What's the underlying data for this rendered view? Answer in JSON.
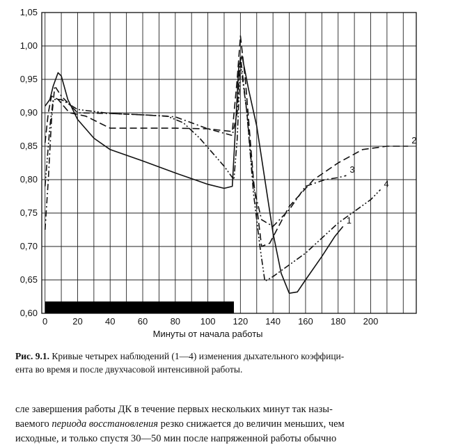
{
  "chart_data": {
    "type": "line",
    "xlabel": "Минуты от начала работы",
    "ylabel": "",
    "xlim": [
      -2,
      228
    ],
    "ylim": [
      0.6,
      1.05
    ],
    "x_ticks": [
      0,
      20,
      40,
      60,
      80,
      100,
      120,
      140,
      160,
      180,
      200
    ],
    "y_ticks": [
      "0,60",
      "0,65",
      "0,70",
      "0,75",
      "0,80",
      "0,85",
      "0,90",
      "0,95",
      "1,00",
      "1,05"
    ],
    "y_tick_values": [
      0.6,
      0.65,
      0.7,
      0.75,
      0.8,
      0.85,
      0.9,
      0.95,
      1.0,
      1.05
    ],
    "grid": true,
    "work_period": [
      0,
      116
    ],
    "series": [
      {
        "name": "1",
        "style": "solid",
        "points": [
          [
            0,
            0.91
          ],
          [
            3,
            0.92
          ],
          [
            5,
            0.94
          ],
          [
            8,
            0.96
          ],
          [
            10,
            0.955
          ],
          [
            14,
            0.92
          ],
          [
            20,
            0.89
          ],
          [
            30,
            0.862
          ],
          [
            40,
            0.845
          ],
          [
            60,
            0.828
          ],
          [
            80,
            0.81
          ],
          [
            100,
            0.793
          ],
          [
            110,
            0.787
          ],
          [
            115,
            0.79
          ],
          [
            117,
            0.88
          ],
          [
            119,
            0.97
          ],
          [
            121,
            0.985
          ],
          [
            125,
            0.935
          ],
          [
            130,
            0.88
          ],
          [
            135,
            0.8
          ],
          [
            140,
            0.72
          ],
          [
            145,
            0.66
          ],
          [
            150,
            0.63
          ],
          [
            155,
            0.632
          ],
          [
            160,
            0.65
          ],
          [
            170,
            0.685
          ],
          [
            178,
            0.715
          ],
          [
            183,
            0.73
          ]
        ]
      },
      {
        "name": "2",
        "style": "dashed",
        "points": [
          [
            0,
            0.855
          ],
          [
            2,
            0.9
          ],
          [
            4,
            0.925
          ],
          [
            8,
            0.92
          ],
          [
            15,
            0.9
          ],
          [
            25,
            0.895
          ],
          [
            40,
            0.877
          ],
          [
            60,
            0.877
          ],
          [
            80,
            0.877
          ],
          [
            100,
            0.876
          ],
          [
            115,
            0.872
          ],
          [
            118,
            0.95
          ],
          [
            120,
            1.015
          ],
          [
            123,
            0.95
          ],
          [
            128,
            0.8
          ],
          [
            133,
            0.7
          ],
          [
            138,
            0.705
          ],
          [
            150,
            0.76
          ],
          [
            165,
            0.8
          ],
          [
            180,
            0.825
          ],
          [
            195,
            0.845
          ],
          [
            210,
            0.85
          ],
          [
            223,
            0.85
          ]
        ]
      },
      {
        "name": "3",
        "style": "dashdot",
        "points": [
          [
            0,
            0.725
          ],
          [
            2,
            0.8
          ],
          [
            4,
            0.89
          ],
          [
            6,
            0.94
          ],
          [
            10,
            0.925
          ],
          [
            20,
            0.9
          ],
          [
            40,
            0.899
          ],
          [
            60,
            0.897
          ],
          [
            80,
            0.894
          ],
          [
            100,
            0.876
          ],
          [
            115,
            0.866
          ],
          [
            118,
            0.9
          ],
          [
            120,
            0.985
          ],
          [
            124,
            0.9
          ],
          [
            128,
            0.79
          ],
          [
            133,
            0.74
          ],
          [
            140,
            0.73
          ],
          [
            150,
            0.755
          ],
          [
            160,
            0.79
          ],
          [
            172,
            0.8
          ],
          [
            180,
            0.803
          ],
          [
            185,
            0.806
          ]
        ]
      },
      {
        "name": "4",
        "style": "dashdotdot",
        "points": [
          [
            0,
            0.79
          ],
          [
            3,
            0.88
          ],
          [
            5,
            0.92
          ],
          [
            10,
            0.92
          ],
          [
            20,
            0.905
          ],
          [
            40,
            0.899
          ],
          [
            60,
            0.897
          ],
          [
            75,
            0.895
          ],
          [
            85,
            0.885
          ],
          [
            95,
            0.862
          ],
          [
            110,
            0.82
          ],
          [
            116,
            0.8
          ],
          [
            118,
            0.86
          ],
          [
            120,
            0.975
          ],
          [
            124,
            0.9
          ],
          [
            128,
            0.78
          ],
          [
            132,
            0.7
          ],
          [
            135,
            0.648
          ],
          [
            140,
            0.655
          ],
          [
            160,
            0.69
          ],
          [
            180,
            0.735
          ],
          [
            200,
            0.77
          ],
          [
            206,
            0.785
          ]
        ]
      }
    ]
  },
  "caption": {
    "label": "Рис. 9.1.",
    "line1": "Кривые четырех наблюдений (1—4) изменения дыхательного коэффици-",
    "line2": "ента во время и после двухчасовой интенсивной работы."
  },
  "body_text": {
    "line1": "сле завершения работы ДК в течение первых нескольких минут так назы-",
    "line2_before": "ваемого ",
    "line2_italic": "периода восстановления",
    "line2_after": " резко снижается до величин меньших, чем",
    "line3": "исходные, и только спустя 30—50 мин после напряженной работы обычно"
  }
}
